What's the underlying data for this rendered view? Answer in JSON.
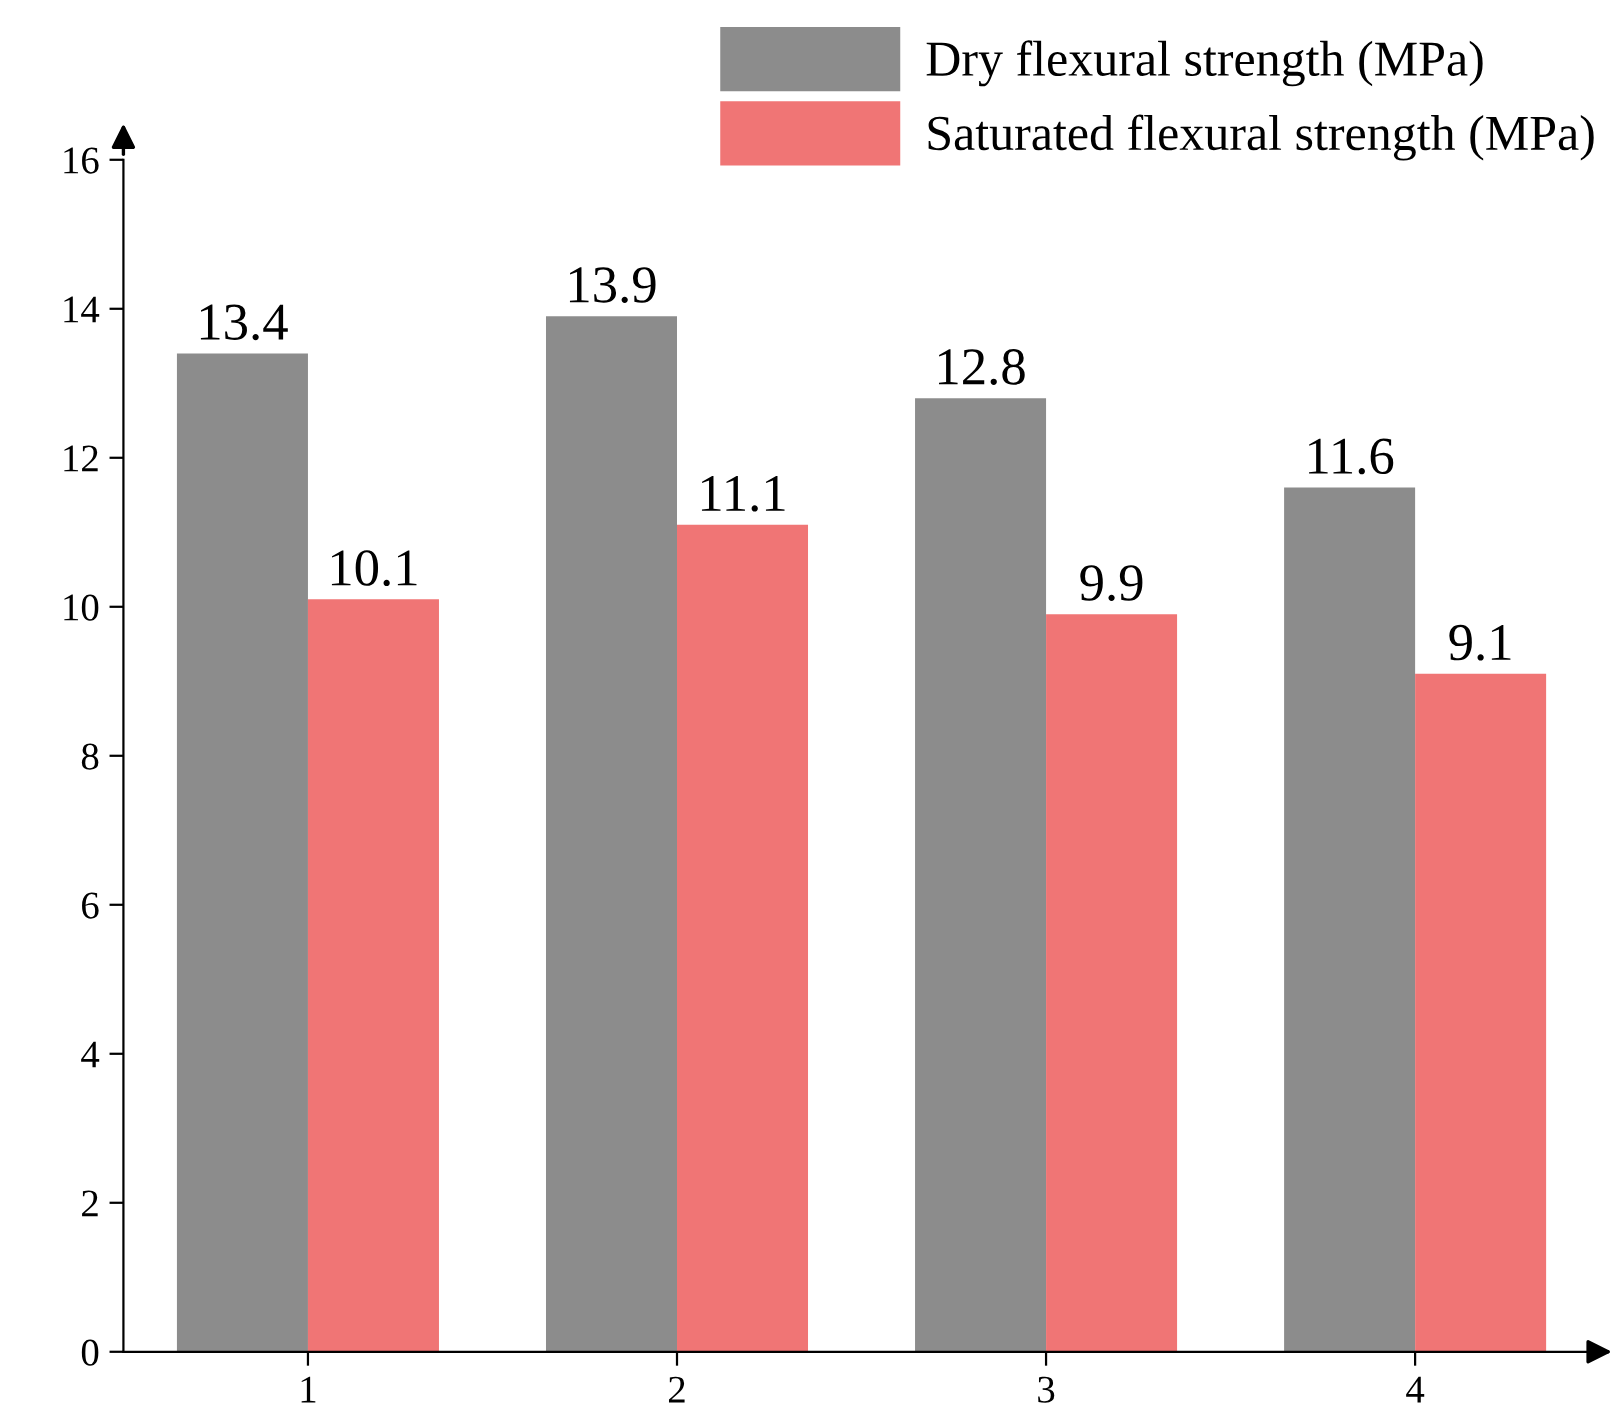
{
  "chart_data": {
    "type": "bar",
    "categories": [
      "1",
      "2",
      "3",
      "4"
    ],
    "series": [
      {
        "name": "Dry flexural strength (MPa)",
        "color": "#8c8c8c",
        "values": [
          13.4,
          13.9,
          12.8,
          11.6
        ]
      },
      {
        "name": "Saturated flexural strength (MPa)",
        "color": "#f07575",
        "values": [
          10.1,
          11.1,
          9.9,
          9.1
        ]
      }
    ],
    "ylim": [
      0,
      16
    ],
    "yticks": [
      0,
      2,
      4,
      6,
      8,
      10,
      12,
      14,
      16
    ],
    "data_labels": true,
    "grid": false,
    "legend": "top right"
  }
}
